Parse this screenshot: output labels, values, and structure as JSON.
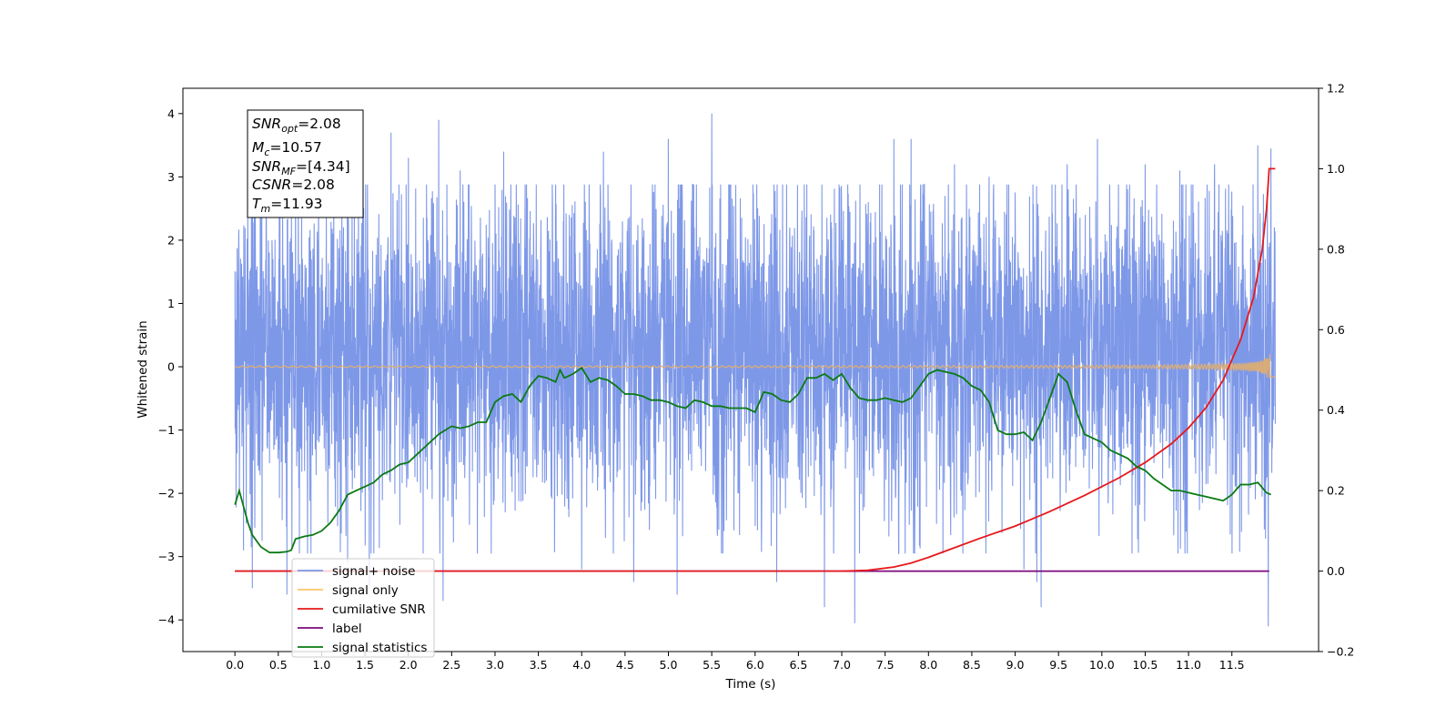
{
  "chart_data": {
    "type": "line",
    "xlabel": "Time (s)",
    "ylabel": "Whitened strain",
    "xlim": [
      -0.6,
      12.5
    ],
    "ylim": [
      -4.5,
      4.4
    ],
    "y2lim": [
      -0.2,
      1.2
    ],
    "x_ticks": [
      0.0,
      0.5,
      1.0,
      1.5,
      2.0,
      2.5,
      3.0,
      3.5,
      4.0,
      4.5,
      5.0,
      5.5,
      6.0,
      6.5,
      7.0,
      7.5,
      8.0,
      8.5,
      9.0,
      9.5,
      10.0,
      10.5,
      11.0,
      11.5
    ],
    "x_tick_labels": [
      "0.0",
      "0.5",
      "1.0",
      "1.5",
      "2.0",
      "2.5",
      "3.0",
      "3.5",
      "4.0",
      "4.5",
      "5.0",
      "5.5",
      "6.0",
      "6.5",
      "7.0",
      "7.5",
      "8.0",
      "8.5",
      "9.0",
      "9.5",
      "10.0",
      "10.5",
      "11.0",
      "11.5"
    ],
    "y_ticks": [
      -4,
      -3,
      -2,
      -1,
      0,
      1,
      2,
      3,
      4
    ],
    "y_tick_labels": [
      "−4",
      "−3",
      "−2",
      "−1",
      "0",
      "1",
      "2",
      "3",
      "4"
    ],
    "y2_ticks": [
      -0.2,
      0.0,
      0.2,
      0.4,
      0.6,
      0.8,
      1.0,
      1.2
    ],
    "y2_tick_labels": [
      "−0.2",
      "0.0",
      "0.2",
      "0.4",
      "0.6",
      "0.8",
      "1.0",
      "1.2"
    ],
    "grid": false,
    "legend_position": "lower-left",
    "signal_noise": {
      "name": "signal+ noise",
      "color": "#7b96e8",
      "axis": "left",
      "x_range": [
        0.0,
        12.0
      ],
      "typical_range": [
        -1.8,
        2.4
      ],
      "peak_range": [
        -4.1,
        4.0
      ],
      "peaks": [
        [
          0.1,
          -2.9
        ],
        [
          0.15,
          2.45
        ],
        [
          0.2,
          -3.5
        ],
        [
          0.55,
          2.4
        ],
        [
          0.6,
          -3.6
        ],
        [
          0.7,
          3.4
        ],
        [
          1.3,
          -3.1
        ],
        [
          1.55,
          -3.5
        ],
        [
          1.8,
          3.7
        ],
        [
          2.0,
          3.3
        ],
        [
          2.35,
          3.9
        ],
        [
          2.4,
          -3.7
        ],
        [
          2.6,
          3.1
        ],
        [
          3.1,
          3.4
        ],
        [
          4.0,
          -3.2
        ],
        [
          4.25,
          3.4
        ],
        [
          4.6,
          -3.4
        ],
        [
          5.0,
          3.6
        ],
        [
          5.1,
          -3.6
        ],
        [
          5.5,
          4.0
        ],
        [
          6.25,
          -3.4
        ],
        [
          6.8,
          -3.8
        ],
        [
          7.15,
          -4.05
        ],
        [
          7.6,
          3.6
        ],
        [
          7.8,
          3.6
        ],
        [
          8.3,
          3.2
        ],
        [
          8.7,
          3.0
        ],
        [
          9.1,
          -3.2
        ],
        [
          9.25,
          -3.4
        ],
        [
          9.3,
          -3.8
        ],
        [
          9.6,
          3.2
        ],
        [
          9.95,
          3.6
        ],
        [
          10.5,
          3.2
        ],
        [
          10.9,
          3.1
        ],
        [
          11.3,
          3.2
        ],
        [
          11.8,
          3.5
        ],
        [
          11.92,
          -4.1
        ],
        [
          11.95,
          3.45
        ]
      ]
    },
    "signal_only": {
      "name": "signal only",
      "color": "#ffc56a",
      "axis": "left",
      "baseline": 0.0,
      "final_amplitude": 0.3
    },
    "series": [
      {
        "name": "cumilative SNR",
        "color": "#e6191b",
        "axis": "right",
        "x": [
          0.0,
          7.0,
          7.3,
          7.6,
          7.8,
          8.0,
          8.3,
          8.6,
          9.0,
          9.4,
          9.8,
          10.2,
          10.5,
          10.8,
          11.0,
          11.2,
          11.4,
          11.6,
          11.75,
          11.85,
          11.9,
          11.93,
          12.0
        ],
        "y": [
          0.0,
          0.0,
          0.002,
          0.01,
          0.02,
          0.034,
          0.058,
          0.082,
          0.112,
          0.148,
          0.188,
          0.232,
          0.27,
          0.316,
          0.356,
          0.406,
          0.475,
          0.575,
          0.68,
          0.8,
          0.9,
          1.0,
          1.0
        ]
      },
      {
        "name": "label",
        "color": "#7b0a7b",
        "axis": "right",
        "x": [
          0.0,
          11.93
        ],
        "y": [
          0.0,
          0.0
        ]
      },
      {
        "name": "signal statistics",
        "color": "#0a7a12",
        "axis": "right",
        "x": [
          0.0,
          0.05,
          0.1,
          0.15,
          0.2,
          0.3,
          0.4,
          0.5,
          0.6,
          0.65,
          0.7,
          0.8,
          0.9,
          1.0,
          1.1,
          1.2,
          1.3,
          1.4,
          1.5,
          1.6,
          1.7,
          1.8,
          1.9,
          2.0,
          2.1,
          2.2,
          2.3,
          2.35,
          2.5,
          2.6,
          2.7,
          2.8,
          2.9,
          3.0,
          3.1,
          3.2,
          3.3,
          3.4,
          3.5,
          3.6,
          3.7,
          3.75,
          3.8,
          3.9,
          4.0,
          4.1,
          4.2,
          4.3,
          4.4,
          4.5,
          4.6,
          4.7,
          4.8,
          4.9,
          5.0,
          5.1,
          5.2,
          5.3,
          5.4,
          5.5,
          5.6,
          5.7,
          5.8,
          5.9,
          6.0,
          6.1,
          6.2,
          6.3,
          6.4,
          6.5,
          6.6,
          6.7,
          6.8,
          6.9,
          7.0,
          7.1,
          7.2,
          7.3,
          7.4,
          7.5,
          7.6,
          7.7,
          7.8,
          7.9,
          8.0,
          8.1,
          8.2,
          8.3,
          8.4,
          8.5,
          8.6,
          8.7,
          8.8,
          8.9,
          9.0,
          9.1,
          9.2,
          9.3,
          9.4,
          9.5,
          9.6,
          9.7,
          9.8,
          9.9,
          10.0,
          10.1,
          10.2,
          10.3,
          10.4,
          10.5,
          10.6,
          10.7,
          10.8,
          10.9,
          11.0,
          11.1,
          11.2,
          11.3,
          11.4,
          11.5,
          11.6,
          11.7,
          11.8,
          11.9,
          11.95
        ],
        "y": [
          0.165,
          0.2,
          0.16,
          0.12,
          0.09,
          0.06,
          0.046,
          0.046,
          0.048,
          0.052,
          0.08,
          0.086,
          0.09,
          0.1,
          0.12,
          0.15,
          0.19,
          0.2,
          0.21,
          0.22,
          0.24,
          0.25,
          0.265,
          0.27,
          0.29,
          0.31,
          0.33,
          0.34,
          0.36,
          0.355,
          0.36,
          0.37,
          0.37,
          0.42,
          0.435,
          0.44,
          0.42,
          0.46,
          0.485,
          0.48,
          0.47,
          0.5,
          0.48,
          0.49,
          0.505,
          0.47,
          0.48,
          0.475,
          0.46,
          0.44,
          0.44,
          0.435,
          0.425,
          0.425,
          0.42,
          0.41,
          0.405,
          0.425,
          0.42,
          0.41,
          0.41,
          0.405,
          0.405,
          0.405,
          0.395,
          0.445,
          0.44,
          0.425,
          0.42,
          0.44,
          0.48,
          0.48,
          0.49,
          0.475,
          0.49,
          0.455,
          0.43,
          0.425,
          0.425,
          0.43,
          0.425,
          0.42,
          0.43,
          0.46,
          0.49,
          0.5,
          0.495,
          0.49,
          0.48,
          0.46,
          0.45,
          0.42,
          0.35,
          0.34,
          0.34,
          0.345,
          0.325,
          0.37,
          0.43,
          0.49,
          0.47,
          0.4,
          0.34,
          0.33,
          0.32,
          0.3,
          0.29,
          0.28,
          0.26,
          0.25,
          0.23,
          0.215,
          0.2,
          0.2,
          0.195,
          0.19,
          0.185,
          0.18,
          0.175,
          0.19,
          0.215,
          0.215,
          0.22,
          0.195,
          0.19
        ]
      }
    ],
    "legend": [
      {
        "label": "signal+ noise",
        "color": "#7b96e8"
      },
      {
        "label": "signal only",
        "color": "#ffc56a"
      },
      {
        "label": "cumilative SNR",
        "color": "#e6191b"
      },
      {
        "label": "label",
        "color": "#7b0a7b"
      },
      {
        "label": "signal statistics",
        "color": "#0a7a12"
      }
    ],
    "info_box": {
      "snr_opt": {
        "base": "SNR",
        "sub": "opt",
        "value": "=2.08"
      },
      "mc": {
        "base": "M",
        "sub": "c",
        "value": "=10.57"
      },
      "snr_mf": {
        "base": "SNR",
        "sub": "MF",
        "value": "=[4.34]"
      },
      "csnr": {
        "base": "CSNR",
        "value": "=2.08"
      },
      "tm": {
        "base": "T",
        "sub": "m",
        "value": "=11.93"
      }
    }
  }
}
